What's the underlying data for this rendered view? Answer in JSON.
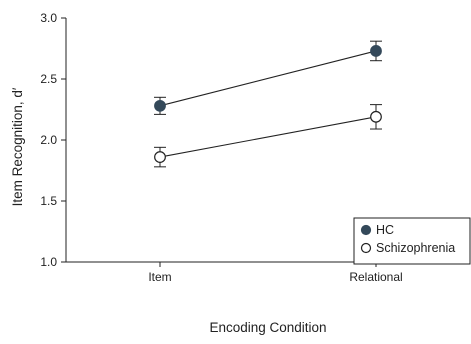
{
  "chart_data": {
    "type": "line",
    "xlabel": "Encoding Condition",
    "ylabel": "Item Recognition, d′",
    "categories": [
      "Item",
      "Relational"
    ],
    "ylim": [
      1.0,
      3.0
    ],
    "y_ticks": [
      "1.0",
      "1.5",
      "2.0",
      "2.5",
      "3.0"
    ],
    "grid": false,
    "legend_position": "bottom-right",
    "series": [
      {
        "name": "HC",
        "marker": "filled-circle",
        "color": "#34495a",
        "values": [
          2.28,
          2.73
        ],
        "error_lower": [
          2.21,
          2.65
        ],
        "error_upper": [
          2.35,
          2.81
        ]
      },
      {
        "name": "Schizophrenia",
        "marker": "open-circle",
        "color": "#34495a",
        "values": [
          1.86,
          2.19
        ],
        "error_lower": [
          1.78,
          2.09
        ],
        "error_upper": [
          1.94,
          2.29
        ]
      }
    ]
  }
}
